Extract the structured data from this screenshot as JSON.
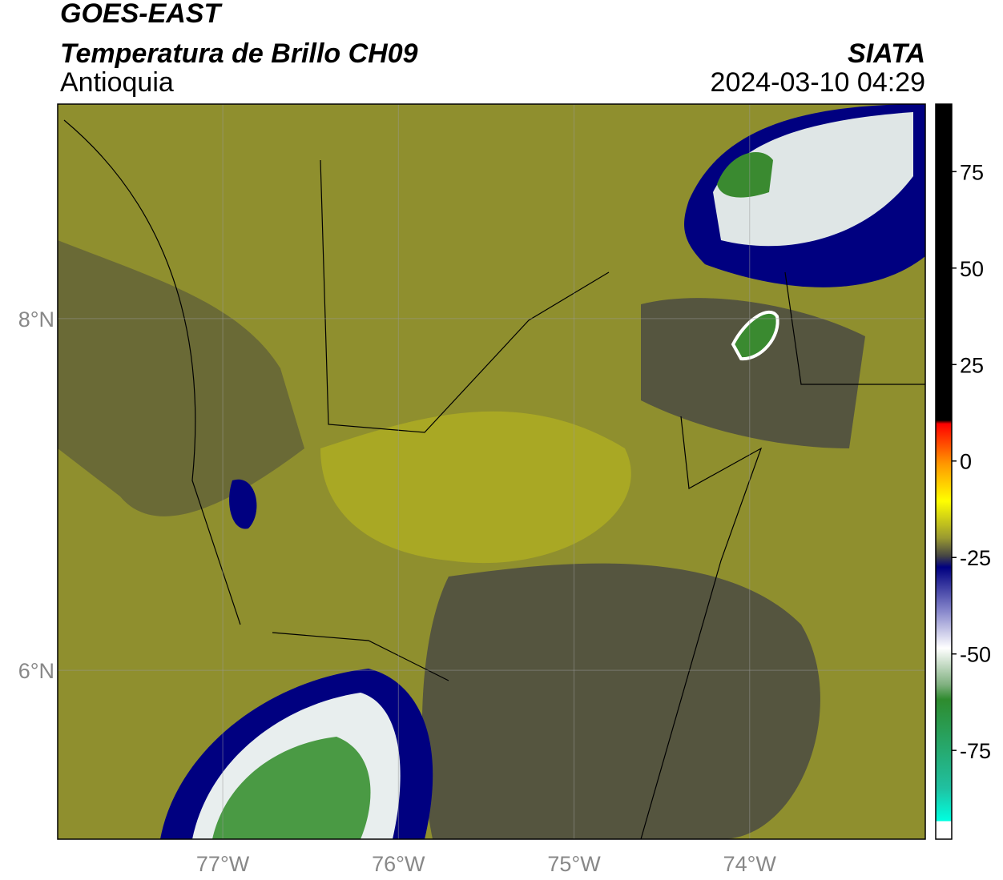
{
  "header": {
    "title": "GOES-EAST",
    "subtitle": "Temperatura de Brillo CH09",
    "region": "Antioquia",
    "source": "SIATA",
    "timestamp": "2024-03-10 04:29"
  },
  "map": {
    "xlim": [
      -77.94,
      -73.0
    ],
    "ylim": [
      5.04,
      9.22
    ],
    "xticks": [
      {
        "value": -77,
        "label": "77°W"
      },
      {
        "value": -76,
        "label": "76°W"
      },
      {
        "value": -75,
        "label": "75°W"
      },
      {
        "value": -74,
        "label": "74°W"
      }
    ],
    "yticks": [
      {
        "value": 8,
        "label": "8°N"
      },
      {
        "value": 6,
        "label": "6°N"
      }
    ]
  },
  "colorbar": {
    "lim": [
      -98,
      92.5
    ],
    "ticks": [
      75,
      50,
      25,
      0,
      -25,
      -50,
      -75
    ]
  }
}
